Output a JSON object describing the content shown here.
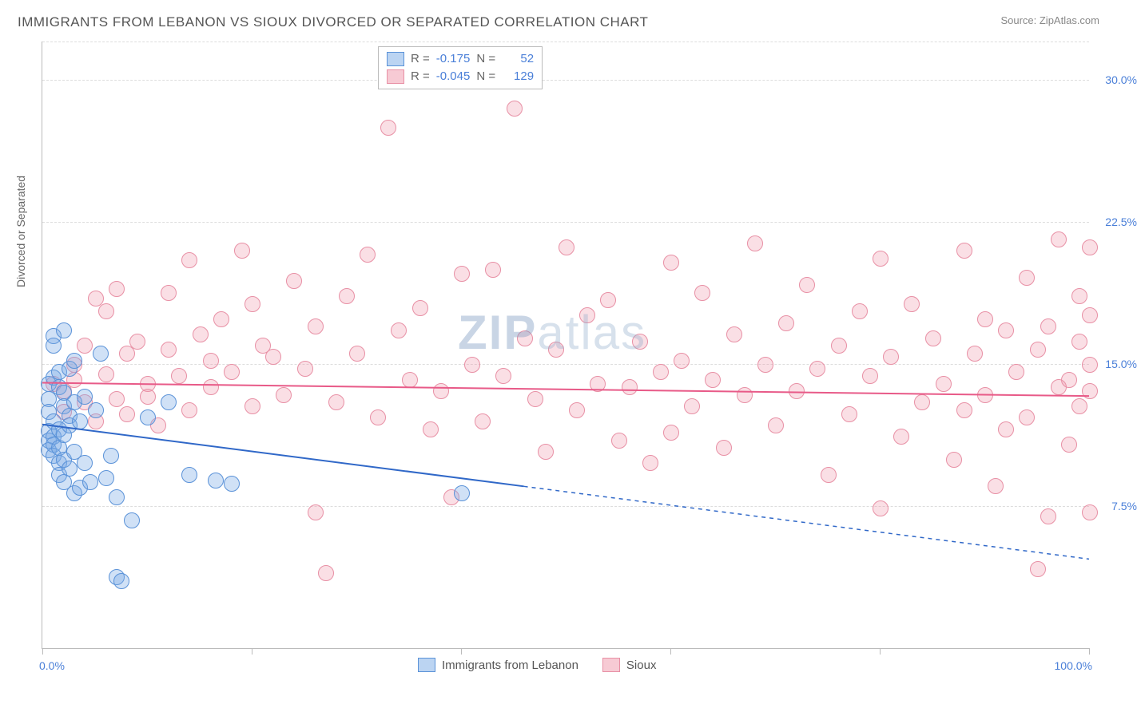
{
  "title": "IMMIGRANTS FROM LEBANON VS SIOUX DIVORCED OR SEPARATED CORRELATION CHART",
  "source_prefix": "Source: ",
  "source_name": "ZipAtlas.com",
  "ylabel": "Divorced or Separated",
  "watermark_bold": "ZIP",
  "watermark_light": "atlas",
  "chart": {
    "type": "scatter",
    "xlim": [
      0,
      100
    ],
    "ylim": [
      0,
      32
    ],
    "yticks": [
      7.5,
      15.0,
      22.5,
      30.0
    ],
    "ytick_labels": [
      "7.5%",
      "15.0%",
      "22.5%",
      "30.0%"
    ],
    "xticks": [
      0,
      20,
      40,
      60,
      80,
      100
    ],
    "xlim_labels": [
      "0.0%",
      "100.0%"
    ],
    "background": "#ffffff",
    "grid_color": "#dddddd",
    "axis_color": "#bbbbbb",
    "label_color": "#4a7fd8",
    "marker_radius": 9,
    "line_width": 2,
    "series": [
      {
        "key": "a",
        "name": "Immigrants from Lebanon",
        "color_fill": "rgba(120,170,230,0.35)",
        "color_stroke": "#5a92d8",
        "line_color": "#3068c8",
        "R": "-0.175",
        "N": "52",
        "trend": {
          "x1": 0,
          "y1": 11.8,
          "x2": 100,
          "y2": 4.7,
          "solid_until_x": 46
        },
        "points": [
          [
            0.5,
            13.2
          ],
          [
            0.5,
            12.5
          ],
          [
            0.5,
            11.5
          ],
          [
            0.5,
            11.0
          ],
          [
            0.5,
            10.5
          ],
          [
            0.5,
            14.0
          ],
          [
            1.0,
            16.5
          ],
          [
            1.0,
            16.0
          ],
          [
            1.0,
            12.0
          ],
          [
            1.0,
            11.2
          ],
          [
            1.0,
            10.8
          ],
          [
            1.0,
            10.2
          ],
          [
            1.0,
            14.3
          ],
          [
            1.5,
            14.6
          ],
          [
            1.5,
            13.8
          ],
          [
            1.5,
            11.6
          ],
          [
            1.5,
            10.6
          ],
          [
            1.5,
            9.8
          ],
          [
            1.5,
            9.2
          ],
          [
            2.0,
            16.8
          ],
          [
            2.0,
            13.5
          ],
          [
            2.0,
            12.8
          ],
          [
            2.0,
            11.3
          ],
          [
            2.0,
            10.0
          ],
          [
            2.0,
            8.8
          ],
          [
            2.5,
            14.8
          ],
          [
            2.5,
            12.3
          ],
          [
            2.5,
            11.8
          ],
          [
            2.5,
            9.5
          ],
          [
            3.0,
            15.2
          ],
          [
            3.0,
            13.0
          ],
          [
            3.0,
            10.4
          ],
          [
            3.0,
            8.2
          ],
          [
            3.5,
            12.0
          ],
          [
            3.5,
            8.5
          ],
          [
            4.0,
            13.3
          ],
          [
            4.0,
            9.8
          ],
          [
            4.5,
            8.8
          ],
          [
            5.0,
            12.6
          ],
          [
            5.5,
            15.6
          ],
          [
            6.0,
            9.0
          ],
          [
            6.5,
            10.2
          ],
          [
            7.0,
            8.0
          ],
          [
            7.0,
            3.8
          ],
          [
            7.5,
            3.6
          ],
          [
            8.5,
            6.8
          ],
          [
            10.0,
            12.2
          ],
          [
            12.0,
            13.0
          ],
          [
            14.0,
            9.2
          ],
          [
            16.5,
            8.9
          ],
          [
            18.0,
            8.7
          ],
          [
            40.0,
            8.2
          ]
        ]
      },
      {
        "key": "b",
        "name": "Sioux",
        "color_fill": "rgba(240,150,170,0.30)",
        "color_stroke": "#e890a5",
        "line_color": "#e85a88",
        "R": "-0.045",
        "N": "129",
        "trend": {
          "x1": 0,
          "y1": 14.0,
          "x2": 100,
          "y2": 13.3,
          "solid_until_x": 100
        },
        "points": [
          [
            1,
            14.0
          ],
          [
            2,
            13.6
          ],
          [
            2,
            12.5
          ],
          [
            3,
            15.0
          ],
          [
            3,
            14.2
          ],
          [
            4,
            13.0
          ],
          [
            4,
            16.0
          ],
          [
            5,
            12.0
          ],
          [
            5,
            18.5
          ],
          [
            6,
            14.5
          ],
          [
            6,
            17.8
          ],
          [
            7,
            13.2
          ],
          [
            7,
            19.0
          ],
          [
            8,
            12.4
          ],
          [
            8,
            15.6
          ],
          [
            9,
            16.2
          ],
          [
            10,
            14.0
          ],
          [
            10,
            13.3
          ],
          [
            11,
            11.8
          ],
          [
            12,
            15.8
          ],
          [
            12,
            18.8
          ],
          [
            13,
            14.4
          ],
          [
            14,
            20.5
          ],
          [
            14,
            12.6
          ],
          [
            15,
            16.6
          ],
          [
            16,
            15.2
          ],
          [
            16,
            13.8
          ],
          [
            17,
            17.4
          ],
          [
            18,
            14.6
          ],
          [
            19,
            21.0
          ],
          [
            20,
            12.8
          ],
          [
            20,
            18.2
          ],
          [
            21,
            16.0
          ],
          [
            22,
            15.4
          ],
          [
            23,
            13.4
          ],
          [
            24,
            19.4
          ],
          [
            25,
            14.8
          ],
          [
            26,
            7.2
          ],
          [
            26,
            17.0
          ],
          [
            27,
            4.0
          ],
          [
            28,
            13.0
          ],
          [
            29,
            18.6
          ],
          [
            30,
            15.6
          ],
          [
            31,
            20.8
          ],
          [
            32,
            12.2
          ],
          [
            33,
            27.5
          ],
          [
            34,
            16.8
          ],
          [
            35,
            14.2
          ],
          [
            36,
            18.0
          ],
          [
            37,
            11.6
          ],
          [
            38,
            13.6
          ],
          [
            39,
            8.0
          ],
          [
            40,
            19.8
          ],
          [
            41,
            15.0
          ],
          [
            42,
            12.0
          ],
          [
            43,
            20.0
          ],
          [
            44,
            14.4
          ],
          [
            45,
            28.5
          ],
          [
            46,
            16.4
          ],
          [
            47,
            13.2
          ],
          [
            48,
            10.4
          ],
          [
            49,
            15.8
          ],
          [
            50,
            21.2
          ],
          [
            51,
            12.6
          ],
          [
            52,
            17.6
          ],
          [
            53,
            14.0
          ],
          [
            54,
            18.4
          ],
          [
            55,
            11.0
          ],
          [
            56,
            13.8
          ],
          [
            57,
            16.2
          ],
          [
            58,
            9.8
          ],
          [
            59,
            14.6
          ],
          [
            60,
            11.4
          ],
          [
            60,
            20.4
          ],
          [
            61,
            15.2
          ],
          [
            62,
            12.8
          ],
          [
            63,
            18.8
          ],
          [
            64,
            14.2
          ],
          [
            65,
            10.6
          ],
          [
            66,
            16.6
          ],
          [
            67,
            13.4
          ],
          [
            68,
            21.4
          ],
          [
            69,
            15.0
          ],
          [
            70,
            11.8
          ],
          [
            71,
            17.2
          ],
          [
            72,
            13.6
          ],
          [
            73,
            19.2
          ],
          [
            74,
            14.8
          ],
          [
            75,
            9.2
          ],
          [
            76,
            16.0
          ],
          [
            77,
            12.4
          ],
          [
            78,
            17.8
          ],
          [
            79,
            14.4
          ],
          [
            80,
            7.4
          ],
          [
            80,
            20.6
          ],
          [
            81,
            15.4
          ],
          [
            82,
            11.2
          ],
          [
            83,
            18.2
          ],
          [
            84,
            13.0
          ],
          [
            85,
            16.4
          ],
          [
            86,
            14.0
          ],
          [
            87,
            10.0
          ],
          [
            88,
            21.0
          ],
          [
            88,
            12.6
          ],
          [
            89,
            15.6
          ],
          [
            90,
            17.4
          ],
          [
            90,
            13.4
          ],
          [
            91,
            8.6
          ],
          [
            92,
            16.8
          ],
          [
            92,
            11.6
          ],
          [
            93,
            14.6
          ],
          [
            94,
            19.6
          ],
          [
            94,
            12.2
          ],
          [
            95,
            4.2
          ],
          [
            95,
            15.8
          ],
          [
            96,
            7.0
          ],
          [
            96,
            17.0
          ],
          [
            97,
            13.8
          ],
          [
            97,
            21.6
          ],
          [
            98,
            14.2
          ],
          [
            98,
            10.8
          ],
          [
            99,
            18.6
          ],
          [
            99,
            12.8
          ],
          [
            99,
            16.2
          ],
          [
            100,
            21.2
          ],
          [
            100,
            15.0
          ],
          [
            100,
            13.6
          ],
          [
            100,
            7.2
          ],
          [
            100,
            17.6
          ]
        ]
      }
    ]
  },
  "legend_top_labels": {
    "R": "R =",
    "N": "N ="
  },
  "legend_bottom_labels": [
    "Immigrants from Lebanon",
    "Sioux"
  ]
}
